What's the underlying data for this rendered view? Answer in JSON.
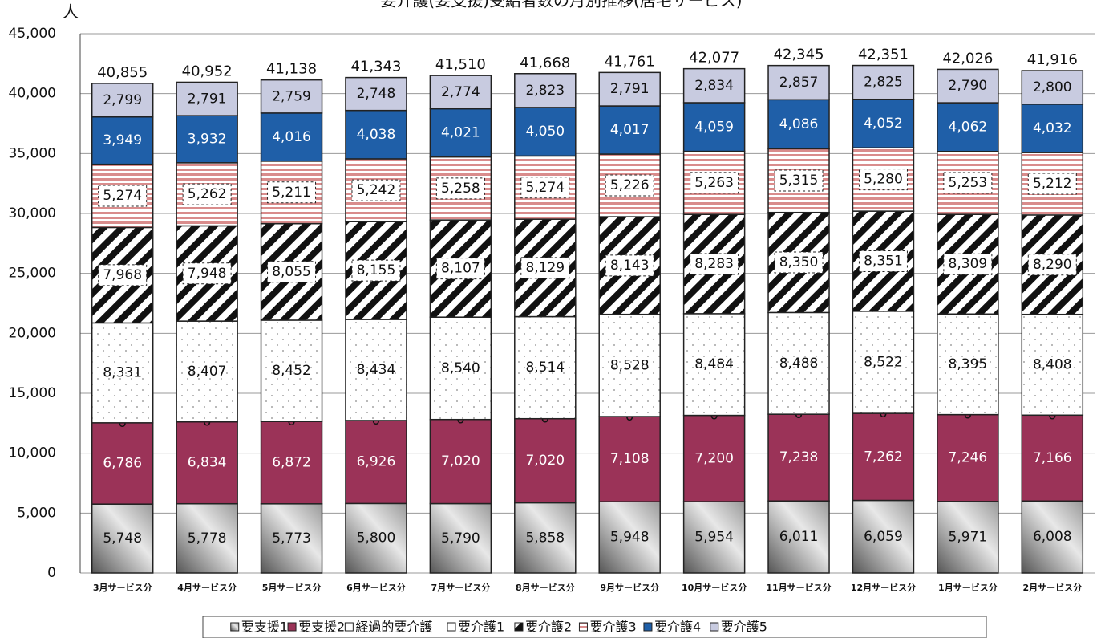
{
  "chart_data": {
    "type": "stacked_bar",
    "title": "要介護(要支援)受給者数の月別推移(居宅サービス)",
    "y_label": "人",
    "categories": [
      "3月サービス分",
      "4月サービス分",
      "5月サービス分",
      "6月サービス分",
      "7月サービス分",
      "8月サービス分",
      "9月サービス分",
      "10月サービス分",
      "11月サービス分",
      "12月サービス分",
      "1月サービス分",
      "2月サービス分"
    ],
    "series": [
      {
        "name": "要支援1",
        "color": "#b4b4b4",
        "pattern": "gradient",
        "values": [
          5748,
          5778,
          5773,
          5800,
          5790,
          5858,
          5948,
          5954,
          6011,
          6059,
          5971,
          6008
        ],
        "value_labels": [
          "5,748",
          "5,778",
          "5,773",
          "5,800",
          "5,790",
          "5,858",
          "5,948",
          "5,954",
          "6,011",
          "6,059",
          "5,971",
          "6,008"
        ]
      },
      {
        "name": "要支援2",
        "color": "#9b3358",
        "values": [
          6786,
          6834,
          6872,
          6926,
          7020,
          7020,
          7108,
          7200,
          7238,
          7262,
          7246,
          7166
        ],
        "value_labels": [
          "6,786",
          "6,834",
          "6,872",
          "6,926",
          "7,020",
          "7,020",
          "7,108",
          "7,200",
          "7,238",
          "7,262",
          "7,246",
          "7,166"
        ]
      },
      {
        "name": "経過的要介護",
        "color": "#ffffff",
        "values": [
          0,
          0,
          0,
          0,
          0,
          0,
          0,
          0,
          0,
          0,
          0,
          0
        ]
      },
      {
        "name": "要介護1",
        "color": "#ffffff",
        "pattern": "dots",
        "values": [
          8331,
          8407,
          8452,
          8434,
          8540,
          8514,
          8528,
          8484,
          8488,
          8522,
          8395,
          8408
        ],
        "value_labels": [
          "8,331",
          "8,407",
          "8,452",
          "8,434",
          "8,540",
          "8,514",
          "8,528",
          "8,484",
          "8,488",
          "8,522",
          "8,395",
          "8,408"
        ]
      },
      {
        "name": "要介護2",
        "color": "#111111",
        "pattern": "diagonal",
        "values": [
          7968,
          7948,
          8055,
          8155,
          8107,
          8129,
          8143,
          8283,
          8350,
          8351,
          8309,
          8290
        ],
        "value_labels": [
          "7,968",
          "7,948",
          "8,055",
          "8,155",
          "8,107",
          "8,129",
          "8,143",
          "8,283",
          "8,350",
          "8,351",
          "8,309",
          "8,290"
        ]
      },
      {
        "name": "要介護3",
        "color": "#d98c8c",
        "pattern": "hstripes",
        "values": [
          5274,
          5262,
          5211,
          5242,
          5258,
          5274,
          5226,
          5263,
          5315,
          5280,
          5253,
          5212
        ],
        "value_labels": [
          "5,274",
          "5,262",
          "5,211",
          "5,242",
          "5,258",
          "5,274",
          "5,226",
          "5,263",
          "5,315",
          "5,280",
          "5,253",
          "5,212"
        ]
      },
      {
        "name": "要介護4",
        "color": "#1f5fa8",
        "values": [
          3949,
          3932,
          4016,
          4038,
          4021,
          4050,
          4017,
          4059,
          4086,
          4052,
          4062,
          4032
        ],
        "value_labels": [
          "3,949",
          "3,932",
          "4,016",
          "4,038",
          "4,021",
          "4,050",
          "4,017",
          "4,059",
          "4,086",
          "4,052",
          "4,062",
          "4,032"
        ]
      },
      {
        "name": "要介護5",
        "color": "#c8cbe0",
        "values": [
          2799,
          2791,
          2759,
          2748,
          2774,
          2823,
          2791,
          2834,
          2857,
          2825,
          2790,
          2800
        ],
        "value_labels": [
          "2,799",
          "2,791",
          "2,759",
          "2,748",
          "2,774",
          "2,823",
          "2,791",
          "2,834",
          "2,857",
          "2,825",
          "2,790",
          "2,800"
        ]
      }
    ],
    "totals": {
      "values": [
        40855,
        40952,
        41138,
        41343,
        41510,
        41668,
        41761,
        42077,
        42345,
        42351,
        42026,
        41916
      ],
      "value_labels": [
        "40,855",
        "40,952",
        "41,138",
        "41,343",
        "41,510",
        "41,668",
        "41,761",
        "42,077",
        "42,345",
        "42,351",
        "42,026",
        "41,916"
      ]
    },
    "ylim": [
      0,
      45000
    ],
    "yticks": [
      0,
      {
        "value": 5000,
        "label": "5,000"
      },
      {
        "value": 10000,
        "label": "10,000"
      },
      {
        "value": 15000,
        "label": "15,000"
      },
      {
        "value": 20000,
        "label": "20,000"
      },
      {
        "value": 25000,
        "label": "25,000"
      },
      {
        "value": 30000,
        "label": "30,000"
      },
      {
        "value": 35000,
        "label": "35,000"
      },
      {
        "value": 40000,
        "label": "40,000"
      },
      {
        "value": 45000,
        "label": "45,000"
      }
    ],
    "grid": true
  }
}
